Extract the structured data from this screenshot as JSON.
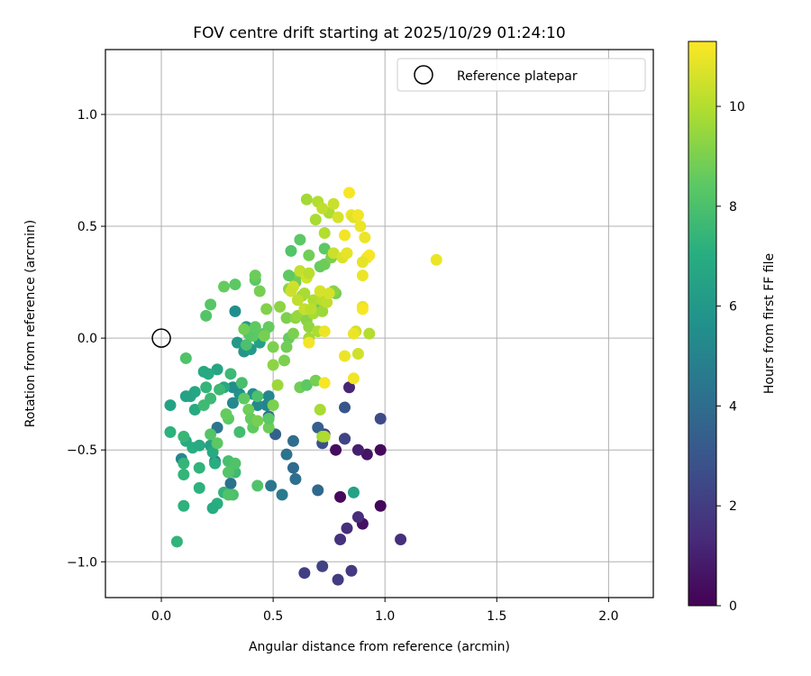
{
  "chart_data": {
    "type": "scatter",
    "title": "FOV centre drift starting at 2025/10/29 01:24:10",
    "xlabel": "Angular distance from reference (arcmin)",
    "ylabel": "Rotation from reference (arcmin)",
    "xlim": [
      -0.25,
      2.2
    ],
    "ylim": [
      -1.16,
      1.29
    ],
    "xticks": [
      0.0,
      0.5,
      1.0,
      1.5,
      2.0
    ],
    "xtick_labels": [
      "0.0",
      "0.5",
      "1.0",
      "1.5",
      "2.0"
    ],
    "yticks": [
      -1.0,
      -0.5,
      0.0,
      0.5,
      1.0
    ],
    "ytick_labels": [
      "−1.0",
      "−0.5",
      "0.0",
      "0.5",
      "1.0"
    ],
    "grid": true,
    "legend": {
      "position": "top-right",
      "entries": [
        "Reference platepar"
      ]
    },
    "reference_point": {
      "x": 0.0,
      "y": 0.0
    },
    "colorbar": {
      "label": "Hours from first FF file",
      "range": [
        0,
        11.3
      ],
      "ticks": [
        0,
        2,
        4,
        6,
        8,
        10
      ],
      "tick_labels": [
        "0",
        "2",
        "4",
        "6",
        "8",
        "10"
      ],
      "colormap": "viridis"
    },
    "points": [
      [
        0.98,
        -0.75,
        0.2
      ],
      [
        0.8,
        -0.71,
        0.3
      ],
      [
        0.9,
        -0.83,
        0.5
      ],
      [
        0.78,
        -0.5,
        0.4
      ],
      [
        0.92,
        -0.52,
        0.6
      ],
      [
        0.98,
        -0.5,
        0.3
      ],
      [
        0.88,
        -0.5,
        1.0
      ],
      [
        0.82,
        -0.45,
        0.8
      ],
      [
        0.83,
        -0.85,
        1.5
      ],
      [
        0.8,
        -0.9,
        1.6
      ],
      [
        0.88,
        -0.8,
        1.4
      ],
      [
        1.07,
        -0.9,
        1.5
      ],
      [
        0.85,
        -1.04,
        1.9
      ],
      [
        0.79,
        -1.08,
        2.0
      ],
      [
        0.72,
        -1.02,
        2.2
      ],
      [
        0.64,
        -1.05,
        2.1
      ],
      [
        0.84,
        -0.22,
        1.2
      ],
      [
        0.73,
        -0.43,
        2.4
      ],
      [
        0.82,
        -0.45,
        2.3
      ],
      [
        0.98,
        -0.36,
        2.6
      ],
      [
        0.82,
        -0.31,
        3.0
      ],
      [
        0.7,
        -0.4,
        3.4
      ],
      [
        0.72,
        -0.47,
        2.8
      ],
      [
        0.7,
        -0.68,
        3.8
      ],
      [
        0.59,
        -0.58,
        3.9
      ],
      [
        0.6,
        -0.63,
        4.1
      ],
      [
        0.56,
        -0.52,
        4.3
      ],
      [
        0.59,
        -0.46,
        4.0
      ],
      [
        0.54,
        -0.7,
        4.6
      ],
      [
        0.49,
        -0.66,
        4.4
      ],
      [
        0.51,
        -0.43,
        3.5
      ],
      [
        0.25,
        -0.4,
        4.4
      ],
      [
        0.31,
        -0.65,
        4.2
      ],
      [
        0.24,
        -0.55,
        4.8
      ],
      [
        0.48,
        -0.35,
        4.2
      ],
      [
        0.47,
        -0.3,
        5.0
      ],
      [
        0.86,
        -0.69,
        6.5
      ],
      [
        0.48,
        -0.26,
        5.2
      ],
      [
        0.41,
        -0.25,
        5.5
      ],
      [
        0.43,
        -0.3,
        5.3
      ],
      [
        0.35,
        -0.25,
        5.7
      ],
      [
        0.32,
        -0.22,
        5.5
      ],
      [
        0.32,
        -0.29,
        5.3
      ],
      [
        0.09,
        -0.54,
        5.2
      ],
      [
        0.33,
        0.12,
        5.6
      ],
      [
        0.37,
        -0.06,
        5.9
      ],
      [
        0.34,
        -0.02,
        6.0
      ],
      [
        0.38,
        0.05,
        6.2
      ],
      [
        0.4,
        -0.05,
        6.1
      ],
      [
        0.44,
        -0.02,
        6.4
      ],
      [
        0.28,
        -0.22,
        6.8
      ],
      [
        0.25,
        -0.14,
        6.6
      ],
      [
        0.21,
        -0.16,
        6.9
      ],
      [
        0.19,
        -0.15,
        6.8
      ],
      [
        0.15,
        -0.24,
        6.7
      ],
      [
        0.13,
        -0.26,
        6.6
      ],
      [
        0.11,
        -0.26,
        6.5
      ],
      [
        0.04,
        -0.3,
        6.5
      ],
      [
        0.15,
        -0.32,
        6.9
      ],
      [
        0.11,
        -0.46,
        6.9
      ],
      [
        0.14,
        -0.49,
        7.0
      ],
      [
        0.17,
        -0.48,
        6.8
      ],
      [
        0.22,
        -0.48,
        6.4
      ],
      [
        0.23,
        -0.51,
        6.8
      ],
      [
        0.24,
        -0.56,
        7.0
      ],
      [
        0.25,
        -0.74,
        7.1
      ],
      [
        0.23,
        -0.76,
        6.9
      ],
      [
        0.28,
        -0.69,
        7.3
      ],
      [
        0.17,
        -0.67,
        7.2
      ],
      [
        0.17,
        -0.58,
        7.3
      ],
      [
        0.1,
        -0.56,
        7.4
      ],
      [
        0.1,
        -0.61,
        7.4
      ],
      [
        0.1,
        -0.75,
        7.2
      ],
      [
        0.07,
        -0.91,
        7.3
      ],
      [
        0.04,
        -0.42,
        7.2
      ],
      [
        0.1,
        -0.44,
        7.5
      ],
      [
        0.2,
        -0.22,
        7.4
      ],
      [
        0.22,
        -0.27,
        7.6
      ],
      [
        0.19,
        -0.3,
        7.7
      ],
      [
        0.26,
        -0.23,
        7.6
      ],
      [
        0.31,
        -0.16,
        7.6
      ],
      [
        0.36,
        -0.2,
        7.9
      ],
      [
        0.35,
        -0.42,
        7.8
      ],
      [
        0.3,
        -0.55,
        7.9
      ],
      [
        0.33,
        -0.6,
        7.7
      ],
      [
        0.32,
        -0.7,
        8.0
      ],
      [
        0.3,
        -0.7,
        8.1
      ],
      [
        0.33,
        -0.56,
        8.1
      ],
      [
        0.3,
        -0.6,
        8.2
      ],
      [
        0.22,
        -0.43,
        8.2
      ],
      [
        0.25,
        -0.47,
        8.4
      ],
      [
        0.3,
        -0.36,
        8.4
      ],
      [
        0.29,
        -0.34,
        8.6
      ],
      [
        0.37,
        -0.27,
        8.5
      ],
      [
        0.39,
        -0.32,
        8.8
      ],
      [
        0.41,
        -0.4,
        8.5
      ],
      [
        0.4,
        -0.36,
        8.6
      ],
      [
        0.43,
        -0.37,
        8.9
      ],
      [
        0.48,
        -0.4,
        8.7
      ],
      [
        0.48,
        -0.36,
        8.4
      ],
      [
        0.5,
        -0.3,
        9.0
      ],
      [
        0.43,
        -0.66,
        8.1
      ],
      [
        0.43,
        -0.26,
        8.0
      ],
      [
        0.11,
        -0.09,
        8.1
      ],
      [
        0.2,
        0.1,
        8.2
      ],
      [
        0.22,
        0.15,
        8.3
      ],
      [
        0.28,
        0.23,
        8.6
      ],
      [
        0.33,
        0.24,
        8.4
      ],
      [
        0.42,
        0.26,
        8.4
      ],
      [
        0.42,
        0.28,
        8.7
      ],
      [
        0.44,
        0.21,
        8.9
      ],
      [
        0.47,
        0.13,
        9.1
      ],
      [
        0.42,
        0.04,
        8.7
      ],
      [
        0.41,
        0.01,
        8.4
      ],
      [
        0.46,
        0.02,
        8.3
      ],
      [
        0.48,
        0.05,
        8.6
      ],
      [
        0.46,
        0.01,
        8.9
      ],
      [
        0.5,
        -0.04,
        9.0
      ],
      [
        0.52,
        -0.21,
        9.6
      ],
      [
        0.5,
        -0.12,
        9.3
      ],
      [
        0.55,
        -0.1,
        9.0
      ],
      [
        0.57,
        0.0,
        8.6
      ],
      [
        0.56,
        -0.04,
        8.8
      ],
      [
        0.59,
        0.02,
        9.0
      ],
      [
        0.56,
        0.09,
        9.0
      ],
      [
        0.6,
        0.09,
        9.3
      ],
      [
        0.61,
        0.1,
        9.5
      ],
      [
        0.62,
        -0.22,
        8.8
      ],
      [
        0.65,
        -0.21,
        8.4
      ],
      [
        0.69,
        -0.19,
        8.9
      ],
      [
        0.71,
        -0.32,
        9.8
      ],
      [
        0.72,
        -0.44,
        9.6
      ],
      [
        0.73,
        -0.44,
        9.9
      ],
      [
        0.38,
        -0.03,
        8.0
      ],
      [
        0.39,
        0.02,
        8.3
      ],
      [
        0.42,
        0.05,
        8.5
      ],
      [
        0.37,
        0.04,
        8.8
      ],
      [
        0.53,
        0.14,
        9.3
      ],
      [
        0.57,
        0.22,
        9.3
      ],
      [
        0.6,
        0.27,
        9.1
      ],
      [
        0.6,
        0.25,
        8.8
      ],
      [
        0.57,
        0.28,
        8.5
      ],
      [
        0.58,
        0.39,
        8.2
      ],
      [
        0.62,
        0.44,
        8.4
      ],
      [
        0.66,
        0.37,
        8.8
      ],
      [
        0.71,
        0.32,
        8.6
      ],
      [
        0.73,
        0.4,
        8.4
      ],
      [
        0.73,
        0.33,
        8.7
      ],
      [
        0.76,
        0.36,
        9.0
      ],
      [
        0.78,
        0.2,
        8.9
      ],
      [
        0.77,
        0.21,
        9.2
      ],
      [
        0.69,
        0.14,
        8.7
      ],
      [
        0.65,
        0.08,
        9.2
      ],
      [
        0.66,
        0.05,
        9.4
      ],
      [
        0.66,
        0.0,
        9.7
      ],
      [
        0.7,
        0.03,
        9.9
      ],
      [
        0.68,
        0.11,
        9.8
      ],
      [
        0.72,
        0.12,
        9.6
      ],
      [
        0.63,
        0.19,
        9.6
      ],
      [
        0.64,
        0.2,
        9.8
      ],
      [
        0.68,
        0.17,
        9.9
      ],
      [
        0.72,
        0.17,
        10.1
      ],
      [
        0.74,
        0.16,
        10.2
      ],
      [
        0.73,
        0.47,
        10.0
      ],
      [
        0.69,
        0.53,
        9.8
      ],
      [
        0.65,
        0.62,
        9.7
      ],
      [
        0.7,
        0.61,
        10.0
      ],
      [
        0.75,
        0.56,
        9.9
      ],
      [
        0.72,
        0.58,
        10.2
      ],
      [
        0.77,
        0.6,
        10.4
      ],
      [
        0.79,
        0.54,
        10.6
      ],
      [
        0.77,
        0.38,
        10.4
      ],
      [
        0.81,
        0.36,
        10.7
      ],
      [
        0.83,
        0.38,
        10.9
      ],
      [
        0.85,
        0.55,
        11.0
      ],
      [
        0.86,
        0.54,
        10.8
      ],
      [
        0.88,
        0.55,
        11.1
      ],
      [
        0.89,
        0.5,
        11.0
      ],
      [
        0.82,
        0.46,
        11.1
      ],
      [
        0.84,
        0.65,
        11.2
      ],
      [
        0.91,
        0.45,
        11.0
      ],
      [
        0.92,
        0.36,
        11.1
      ],
      [
        0.93,
        0.37,
        11.2
      ],
      [
        0.9,
        0.34,
        10.9
      ],
      [
        0.9,
        0.28,
        11.0
      ],
      [
        0.9,
        0.14,
        10.9
      ],
      [
        0.9,
        0.13,
        11.2
      ],
      [
        0.87,
        0.03,
        10.5
      ],
      [
        0.86,
        0.02,
        11.0
      ],
      [
        0.93,
        0.02,
        10.0
      ],
      [
        0.88,
        -0.07,
        10.5
      ],
      [
        0.82,
        -0.08,
        11.0
      ],
      [
        0.86,
        -0.18,
        11.1
      ],
      [
        0.73,
        -0.2,
        11.2
      ],
      [
        0.66,
        -0.02,
        11.1
      ],
      [
        0.73,
        0.03,
        11.0
      ],
      [
        0.75,
        0.2,
        10.6
      ],
      [
        0.71,
        0.21,
        10.6
      ],
      [
        0.62,
        0.3,
        10.3
      ],
      [
        0.65,
        0.27,
        10.5
      ],
      [
        0.66,
        0.29,
        10.1
      ],
      [
        0.64,
        0.13,
        10.3
      ],
      [
        0.67,
        0.13,
        10.1
      ],
      [
        0.59,
        0.23,
        10.5
      ],
      [
        0.58,
        0.21,
        10.4
      ],
      [
        0.61,
        0.17,
        10.2
      ],
      [
        1.23,
        0.35,
        11.0
      ]
    ]
  }
}
